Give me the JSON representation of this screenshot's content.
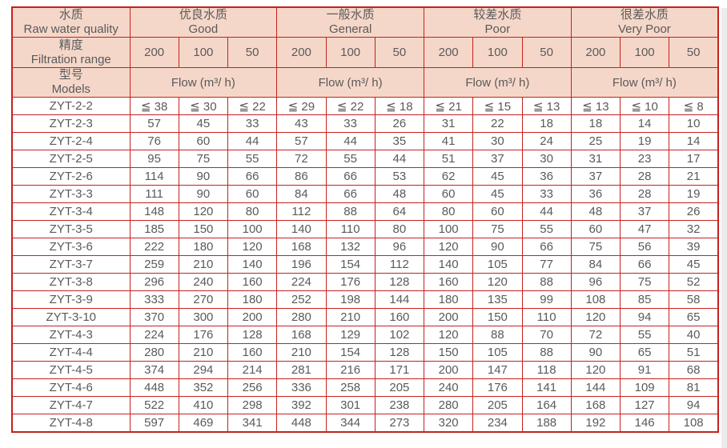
{
  "colors": {
    "header_bg": "#f5d7c9",
    "border": "#c4221d",
    "text": "#5a5a5a",
    "row_bg": "#ffffff"
  },
  "header": {
    "quality": {
      "cn": "水质",
      "en": "Raw water quality"
    },
    "precision": {
      "cn": "精度",
      "en": "Filtration range"
    },
    "models": {
      "cn": "型号",
      "en": "Models"
    },
    "groups": [
      {
        "cn": "优良水质",
        "en": "Good"
      },
      {
        "cn": "一般水质",
        "en": "General"
      },
      {
        "cn": "较差水质",
        "en": "Poor"
      },
      {
        "cn": "很差水质",
        "en": "Very Poor"
      }
    ],
    "precisions": [
      "200",
      "100",
      "50"
    ],
    "flow_label": "Flow (m³/ h)"
  },
  "rows": [
    {
      "model": "ZYT-2-2",
      "values": [
        "≦ 38",
        "≦ 30",
        "≦ 22",
        "≦ 29",
        "≦ 22",
        "≦ 18",
        "≦ 21",
        "≦ 15",
        "≦ 13",
        "≦ 13",
        "≦ 10",
        "≦ 8"
      ]
    },
    {
      "model": "ZYT-2-3",
      "values": [
        "57",
        "45",
        "33",
        "43",
        "33",
        "26",
        "31",
        "22",
        "18",
        "18",
        "14",
        "10"
      ]
    },
    {
      "model": "ZYT-2-4",
      "values": [
        "76",
        "60",
        "44",
        "57",
        "44",
        "35",
        "41",
        "30",
        "24",
        "25",
        "19",
        "14"
      ]
    },
    {
      "model": "ZYT-2-5",
      "values": [
        "95",
        "75",
        "55",
        "72",
        "55",
        "44",
        "51",
        "37",
        "30",
        "31",
        "23",
        "17"
      ]
    },
    {
      "model": "ZYT-2-6",
      "values": [
        "114",
        "90",
        "66",
        "86",
        "66",
        "53",
        "62",
        "45",
        "36",
        "37",
        "28",
        "21"
      ]
    },
    {
      "model": "ZYT-3-3",
      "values": [
        "111",
        "90",
        "60",
        "84",
        "66",
        "48",
        "60",
        "45",
        "33",
        "36",
        "28",
        "19"
      ]
    },
    {
      "model": "ZYT-3-4",
      "values": [
        "148",
        "120",
        "80",
        "112",
        "88",
        "64",
        "80",
        "60",
        "44",
        "48",
        "37",
        "26"
      ]
    },
    {
      "model": "ZYT-3-5",
      "values": [
        "185",
        "150",
        "100",
        "140",
        "110",
        "80",
        "100",
        "75",
        "55",
        "60",
        "47",
        "32"
      ]
    },
    {
      "model": "ZYT-3-6",
      "values": [
        "222",
        "180",
        "120",
        "168",
        "132",
        "96",
        "120",
        "90",
        "66",
        "75",
        "56",
        "39"
      ]
    },
    {
      "model": "ZYT-3-7",
      "values": [
        "259",
        "210",
        "140",
        "196",
        "154",
        "112",
        "140",
        "105",
        "77",
        "84",
        "66",
        "45"
      ]
    },
    {
      "model": "ZYT-3-8",
      "values": [
        "296",
        "240",
        "160",
        "224",
        "176",
        "128",
        "160",
        "120",
        "88",
        "96",
        "75",
        "52"
      ]
    },
    {
      "model": "ZYT-3-9",
      "values": [
        "333",
        "270",
        "180",
        "252",
        "198",
        "144",
        "180",
        "135",
        "99",
        "108",
        "85",
        "58"
      ]
    },
    {
      "model": "ZYT-3-10",
      "values": [
        "370",
        "300",
        "200",
        "280",
        "210",
        "160",
        "200",
        "150",
        "110",
        "120",
        "94",
        "65"
      ]
    },
    {
      "model": "ZYT-4-3",
      "values": [
        "224",
        "176",
        "128",
        "168",
        "129",
        "102",
        "120",
        "88",
        "70",
        "72",
        "55",
        "40"
      ]
    },
    {
      "model": "ZYT-4-4",
      "values": [
        "280",
        "210",
        "160",
        "210",
        "154",
        "128",
        "150",
        "105",
        "88",
        "90",
        "65",
        "51"
      ]
    },
    {
      "model": "ZYT-4-5",
      "values": [
        "374",
        "294",
        "214",
        "281",
        "216",
        "171",
        "200",
        "147",
        "118",
        "120",
        "91",
        "68"
      ]
    },
    {
      "model": "ZYT-4-6",
      "values": [
        "448",
        "352",
        "256",
        "336",
        "258",
        "205",
        "240",
        "176",
        "141",
        "144",
        "109",
        "81"
      ]
    },
    {
      "model": "ZYT-4-7",
      "values": [
        "522",
        "410",
        "298",
        "392",
        "301",
        "238",
        "280",
        "205",
        "164",
        "168",
        "127",
        "94"
      ]
    },
    {
      "model": "ZYT-4-8",
      "values": [
        "597",
        "469",
        "341",
        "448",
        "344",
        "273",
        "320",
        "234",
        "188",
        "192",
        "146",
        "108"
      ]
    }
  ]
}
